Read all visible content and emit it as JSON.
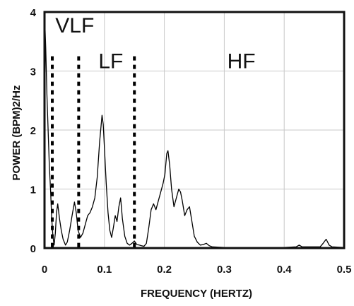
{
  "chart_data": {
    "type": "line",
    "title": "",
    "xlabel": "FREQUENCY (HERTZ)",
    "ylabel": "POWER (BPM)2/Hz",
    "xlim": [
      0,
      0.5
    ],
    "ylim": [
      0,
      4
    ],
    "grid": true,
    "x_ticks": [
      "0",
      "0.1",
      "0.2",
      "0.3",
      "0.4",
      "0.5"
    ],
    "x_tick_values": [
      0,
      0.1,
      0.2,
      0.3,
      0.4,
      0.5
    ],
    "y_ticks": [
      "0",
      "1",
      "2",
      "3",
      "4"
    ],
    "y_tick_values": [
      0,
      1,
      2,
      3,
      4
    ],
    "band_boundaries": [
      0.013,
      0.057,
      0.15
    ],
    "bands": [
      {
        "label": "VLF",
        "x": 0.018,
        "y": 3.65
      },
      {
        "label": "LF",
        "x": 0.09,
        "y": 3.05
      },
      {
        "label": "HF",
        "x": 0.305,
        "y": 3.05
      }
    ],
    "series": [
      {
        "points": [
          [
            0,
            4.0
          ],
          [
            0.002,
            3.4
          ],
          [
            0.004,
            2.6
          ],
          [
            0.006,
            2.0
          ],
          [
            0.008,
            1.4
          ],
          [
            0.01,
            1.0
          ],
          [
            0.012,
            0.5
          ],
          [
            0.014,
            0.2
          ],
          [
            0.016,
            0.05
          ],
          [
            0.018,
            0.25
          ],
          [
            0.02,
            0.6
          ],
          [
            0.022,
            0.75
          ],
          [
            0.025,
            0.5
          ],
          [
            0.028,
            0.3
          ],
          [
            0.031,
            0.15
          ],
          [
            0.035,
            0.05
          ],
          [
            0.038,
            0.1
          ],
          [
            0.042,
            0.3
          ],
          [
            0.046,
            0.55
          ],
          [
            0.05,
            0.78
          ],
          [
            0.053,
            0.6
          ],
          [
            0.056,
            0.3
          ],
          [
            0.06,
            0.18
          ],
          [
            0.064,
            0.25
          ],
          [
            0.068,
            0.4
          ],
          [
            0.072,
            0.55
          ],
          [
            0.076,
            0.6
          ],
          [
            0.08,
            0.7
          ],
          [
            0.084,
            0.85
          ],
          [
            0.088,
            1.2
          ],
          [
            0.092,
            1.8
          ],
          [
            0.096,
            2.25
          ],
          [
            0.098,
            2.1
          ],
          [
            0.1,
            1.7
          ],
          [
            0.103,
            1.1
          ],
          [
            0.106,
            0.6
          ],
          [
            0.109,
            0.3
          ],
          [
            0.112,
            0.18
          ],
          [
            0.115,
            0.35
          ],
          [
            0.118,
            0.55
          ],
          [
            0.121,
            0.45
          ],
          [
            0.124,
            0.7
          ],
          [
            0.127,
            0.85
          ],
          [
            0.13,
            0.5
          ],
          [
            0.134,
            0.2
          ],
          [
            0.138,
            0.08
          ],
          [
            0.142,
            0.05
          ],
          [
            0.146,
            0.08
          ],
          [
            0.15,
            0.12
          ],
          [
            0.154,
            0.06
          ],
          [
            0.158,
            0.05
          ],
          [
            0.162,
            0.04
          ],
          [
            0.166,
            0.03
          ],
          [
            0.17,
            0.08
          ],
          [
            0.174,
            0.35
          ],
          [
            0.178,
            0.65
          ],
          [
            0.182,
            0.75
          ],
          [
            0.186,
            0.65
          ],
          [
            0.19,
            0.8
          ],
          [
            0.194,
            0.95
          ],
          [
            0.198,
            1.1
          ],
          [
            0.201,
            1.25
          ],
          [
            0.204,
            1.6
          ],
          [
            0.206,
            1.65
          ],
          [
            0.209,
            1.4
          ],
          [
            0.212,
            1.0
          ],
          [
            0.216,
            0.7
          ],
          [
            0.22,
            0.85
          ],
          [
            0.224,
            1.0
          ],
          [
            0.227,
            0.95
          ],
          [
            0.23,
            0.8
          ],
          [
            0.234,
            0.55
          ],
          [
            0.238,
            0.65
          ],
          [
            0.242,
            0.7
          ],
          [
            0.246,
            0.45
          ],
          [
            0.25,
            0.2
          ],
          [
            0.255,
            0.1
          ],
          [
            0.26,
            0.05
          ],
          [
            0.265,
            0.06
          ],
          [
            0.27,
            0.08
          ],
          [
            0.275,
            0.04
          ],
          [
            0.28,
            0.02
          ],
          [
            0.3,
            0.01
          ],
          [
            0.35,
            0.01
          ],
          [
            0.4,
            0.01
          ],
          [
            0.42,
            0.02
          ],
          [
            0.425,
            0.05
          ],
          [
            0.43,
            0.02
          ],
          [
            0.46,
            0.02
          ],
          [
            0.465,
            0.08
          ],
          [
            0.47,
            0.15
          ],
          [
            0.475,
            0.05
          ],
          [
            0.48,
            0.02
          ],
          [
            0.5,
            0.01
          ]
        ]
      }
    ]
  }
}
